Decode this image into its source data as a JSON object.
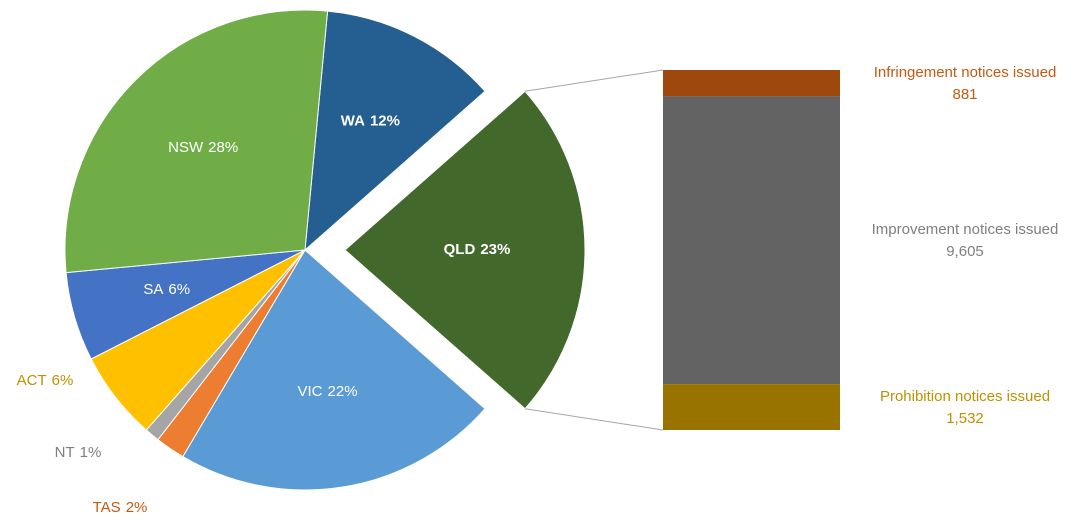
{
  "chart_data": [
    {
      "type": "pie",
      "categories": [
        "WA",
        "QLD",
        "VIC",
        "TAS",
        "NT",
        "ACT",
        "SA",
        "NSW"
      ],
      "values": [
        12,
        23,
        22,
        2,
        1,
        6,
        6,
        28
      ],
      "value_labels": [
        "12%",
        "23%",
        "22%",
        "2%",
        "1%",
        "6%",
        "6%",
        "28%"
      ],
      "colors": [
        "#255e91",
        "#43682b",
        "#5b9bd5",
        "#ed7d31",
        "#a5a5a5",
        "#ffc000",
        "#4472c4",
        "#70ad47"
      ],
      "label_colors": [
        "#ffffff",
        "#ffffff",
        "#ffffff",
        "#c55a11",
        "#7f7f7f",
        "#bf9000",
        "#ffffff",
        "#ffffff"
      ],
      "exploded": "QLD"
    },
    {
      "type": "stacked-bar",
      "categories": [
        "Infringement notices issued",
        "Improvement notices issued",
        "Prohibition notices issued"
      ],
      "values": [
        881,
        9605,
        1532
      ],
      "value_labels": [
        "881",
        "9,605",
        "1,532"
      ],
      "colors": [
        "#9e480e",
        "#636363",
        "#997300"
      ],
      "label_colors": [
        "#c55a11",
        "#7f7f7f",
        "#bf9000"
      ]
    }
  ]
}
